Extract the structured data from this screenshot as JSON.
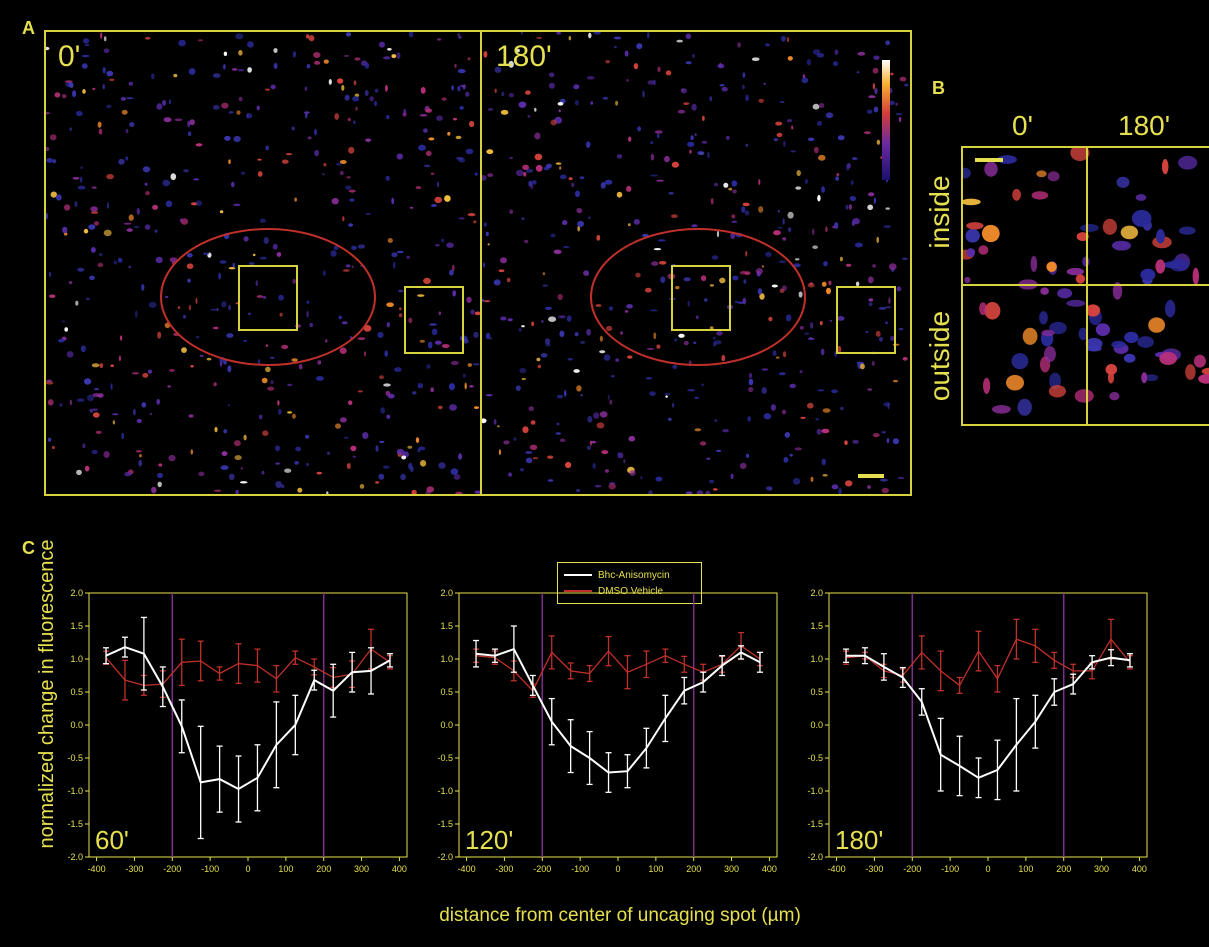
{
  "figure": {
    "panel_labels": {
      "a": "A",
      "b": "B",
      "c": "C"
    },
    "panel_a": {
      "left_time": "0'",
      "right_time": "180'"
    },
    "panel_b": {
      "col_left": "0'",
      "col_right": "180'",
      "row_top": "inside",
      "row_bottom": "outside"
    },
    "legend": [
      {
        "label": "Bhc-Anisomycin",
        "color": "#ffffff"
      },
      {
        "label": "DMSO Vehicle",
        "color": "#c0302a"
      }
    ],
    "ylabel": "normalized change in fluorescence",
    "xlabel": "distance from center of uncaging spot (µm)",
    "colors": {
      "accent": "#e6e051",
      "ellipse": "#c0302a",
      "marker_line": "#7a2f8a"
    }
  },
  "chart_data": [
    {
      "type": "line",
      "panel_label": "60'",
      "xlim": [
        -420,
        420
      ],
      "ylim": [
        -2.0,
        2.0
      ],
      "xticks": [
        -400,
        -300,
        -200,
        -100,
        0,
        100,
        200,
        300,
        400
      ],
      "yticks": [
        -2.0,
        -1.5,
        -1.0,
        -0.5,
        0.0,
        0.5,
        1.0,
        1.5,
        2.0
      ],
      "ytick_labels": [
        "-2.0",
        "-1.5",
        "-1.0",
        "-0.5",
        "0.0",
        "0.5",
        "1.0",
        "1.5",
        "2.0"
      ],
      "vlines": [
        -200,
        200
      ],
      "x": [
        -375,
        -325,
        -275,
        -225,
        -175,
        -125,
        -75,
        -25,
        25,
        75,
        125,
        175,
        225,
        275,
        325,
        375
      ],
      "series": [
        {
          "name": "Bhc-Anisomycin",
          "color": "#ffffff",
          "values": [
            1.05,
            1.18,
            1.08,
            0.58,
            -0.02,
            -0.87,
            -0.82,
            -0.97,
            -0.8,
            -0.3,
            0.0,
            0.68,
            0.52,
            0.8,
            0.82,
            0.98
          ],
          "errors": [
            0.12,
            0.15,
            0.55,
            0.3,
            0.4,
            0.85,
            0.5,
            0.5,
            0.5,
            0.65,
            0.45,
            0.15,
            0.4,
            0.3,
            0.35,
            0.1
          ]
        },
        {
          "name": "DMSO Vehicle",
          "color": "#c0302a",
          "values": [
            1.02,
            0.68,
            0.6,
            0.62,
            0.95,
            0.97,
            0.78,
            0.93,
            0.9,
            0.7,
            1.02,
            0.88,
            0.72,
            0.77,
            1.15,
            0.95
          ],
          "errors": [
            0.1,
            0.3,
            0.15,
            0.2,
            0.35,
            0.3,
            0.1,
            0.3,
            0.25,
            0.2,
            0.1,
            0.12,
            0.15,
            0.2,
            0.3,
            0.1
          ]
        }
      ]
    },
    {
      "type": "line",
      "panel_label": "120'",
      "xlim": [
        -420,
        420
      ],
      "ylim": [
        -2.0,
        2.0
      ],
      "xticks": [
        -400,
        -300,
        -200,
        -100,
        0,
        100,
        200,
        300,
        400
      ],
      "yticks": [
        -2.0,
        -1.5,
        -1.0,
        -0.5,
        0.0,
        0.5,
        1.0,
        1.5,
        2.0
      ],
      "ytick_labels": [
        "-2.0",
        "-1.5",
        "-1.0",
        "-0.5",
        "0.0",
        "0.5",
        "1.0",
        "1.5",
        "2.0"
      ],
      "vlines": [
        -200,
        200
      ],
      "x": [
        -375,
        -325,
        -275,
        -225,
        -175,
        -125,
        -75,
        -25,
        25,
        75,
        125,
        175,
        225,
        275,
        325,
        375
      ],
      "series": [
        {
          "name": "Bhc-Anisomycin",
          "color": "#ffffff",
          "values": [
            1.08,
            1.05,
            1.15,
            0.6,
            0.05,
            -0.32,
            -0.5,
            -0.72,
            -0.7,
            -0.35,
            0.1,
            0.52,
            0.65,
            0.9,
            1.1,
            0.95
          ],
          "errors": [
            0.2,
            0.1,
            0.35,
            0.15,
            0.35,
            0.4,
            0.4,
            0.3,
            0.25,
            0.3,
            0.35,
            0.2,
            0.15,
            0.15,
            0.1,
            0.15
          ]
        },
        {
          "name": "DMSO Vehicle",
          "color": "#c0302a",
          "values": [
            1.05,
            1.02,
            0.82,
            0.52,
            1.1,
            0.82,
            0.78,
            1.12,
            0.8,
            0.92,
            1.05,
            0.92,
            0.8,
            0.92,
            1.2,
            1.0
          ],
          "errors": [
            0.1,
            0.1,
            0.15,
            0.1,
            0.25,
            0.12,
            0.12,
            0.22,
            0.25,
            0.2,
            0.1,
            0.12,
            0.12,
            0.12,
            0.2,
            0.1
          ]
        }
      ]
    },
    {
      "type": "line",
      "panel_label": "180'",
      "xlim": [
        -420,
        420
      ],
      "ylim": [
        -2.0,
        2.0
      ],
      "xticks": [
        -400,
        -300,
        -200,
        -100,
        0,
        100,
        200,
        300,
        400
      ],
      "yticks": [
        -2.0,
        -1.5,
        -1.0,
        -0.5,
        0.0,
        0.5,
        1.0,
        1.5,
        2.0
      ],
      "ytick_labels": [
        "-2.0",
        "-1.5",
        "-1.0",
        "-0.5",
        "0.0",
        "0.5",
        "1.0",
        "1.5",
        "2.0"
      ],
      "vlines": [
        -200,
        200
      ],
      "x": [
        -375,
        -325,
        -275,
        -225,
        -175,
        -125,
        -75,
        -25,
        25,
        75,
        125,
        175,
        225,
        275,
        325,
        375
      ],
      "series": [
        {
          "name": "Bhc-Anisomycin",
          "color": "#ffffff",
          "values": [
            1.05,
            1.05,
            0.88,
            0.72,
            0.35,
            -0.45,
            -0.62,
            -0.8,
            -0.68,
            -0.3,
            0.05,
            0.5,
            0.62,
            0.95,
            1.02,
            0.98
          ],
          "errors": [
            0.1,
            0.12,
            0.2,
            0.15,
            0.2,
            0.55,
            0.45,
            0.3,
            0.45,
            0.7,
            0.4,
            0.2,
            0.15,
            0.1,
            0.12,
            0.1
          ]
        },
        {
          "name": "DMSO Vehicle",
          "color": "#c0302a",
          "values": [
            1.02,
            1.05,
            0.82,
            0.75,
            1.1,
            0.82,
            0.6,
            1.12,
            0.7,
            1.3,
            1.2,
            0.98,
            0.82,
            0.82,
            1.3,
            0.95
          ],
          "errors": [
            0.1,
            0.05,
            0.1,
            0.1,
            0.25,
            0.3,
            0.12,
            0.3,
            0.2,
            0.3,
            0.25,
            0.12,
            0.1,
            0.12,
            0.3,
            0.1
          ]
        }
      ]
    }
  ]
}
